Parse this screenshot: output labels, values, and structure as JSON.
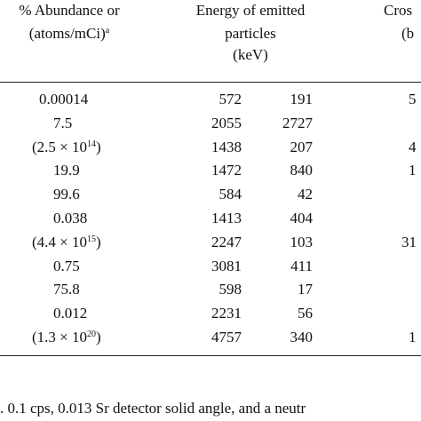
{
  "header": {
    "abundance": [
      "% Abundance or",
      "(atoms/mCi)"
    ],
    "abundance_note": "a",
    "energy": [
      "Energy of emitted",
      "particles",
      "(keV)"
    ],
    "cross": [
      "Cros",
      "(b"
    ]
  },
  "table": {
    "rows": [
      [
        {
          "pre": "0.00014"
        },
        "572",
        "191",
        "5"
      ],
      [
        {
          "pre": "7.5"
        },
        "2055",
        "2727",
        ""
      ],
      [
        {
          "pre": "(2.5 × 10",
          "sup": "14",
          "post": ")"
        },
        "1438",
        "207",
        "4"
      ],
      [
        {
          "pre": "19.9"
        },
        "1472",
        "840",
        "1"
      ],
      [
        {
          "pre": "99.6"
        },
        "584",
        "42",
        ""
      ],
      [
        {
          "pre": "0.038"
        },
        "1413",
        "404",
        ""
      ],
      [
        {
          "pre": "(4.4 × 10",
          "sup": "15",
          "post": ")"
        },
        "2247",
        "103",
        "31"
      ],
      [
        {
          "pre": "0.75"
        },
        "3081",
        "411",
        ""
      ],
      [
        {
          "pre": "75.8"
        },
        "598",
        "17",
        ""
      ],
      [
        {
          "pre": "0.012"
        },
        "2231",
        "56",
        ""
      ],
      [
        {
          "pre": "(1.3 × 10",
          "sup": "20",
          "post": ")"
        },
        "4757",
        "340",
        "1"
      ]
    ]
  },
  "footer": {
    "text": ". 0.1 cps, 0.013 Sr detector solid angle, and a neutr"
  }
}
